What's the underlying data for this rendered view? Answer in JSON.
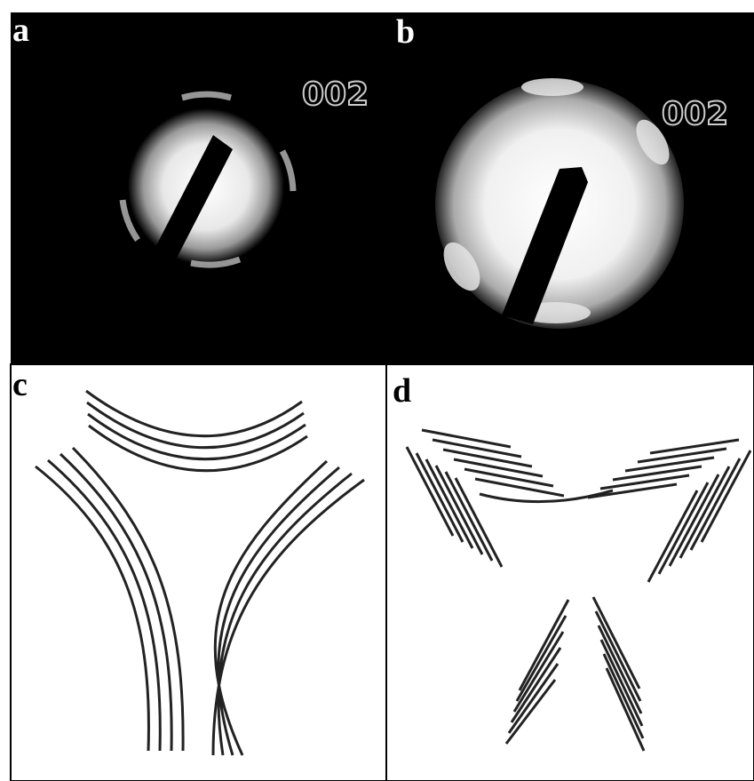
{
  "panels": [
    {
      "label": "a",
      "annotation": "002"
    },
    {
      "label": "b",
      "annotation": "002"
    },
    {
      "label": "c"
    },
    {
      "label": "d"
    }
  ]
}
